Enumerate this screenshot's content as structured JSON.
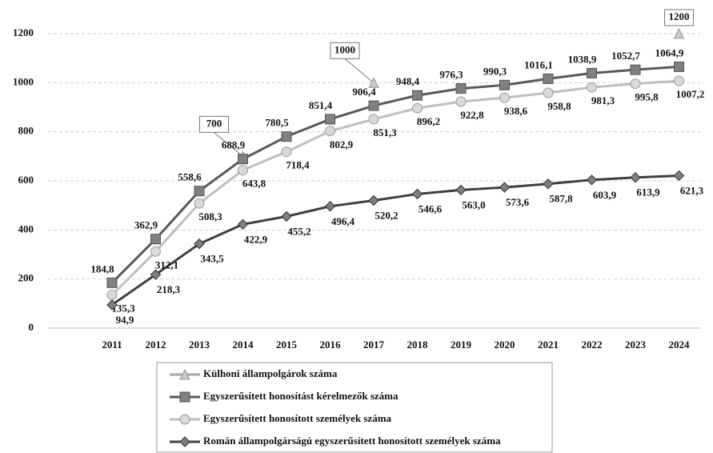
{
  "chart_data": {
    "type": "line",
    "categories": [
      "2011",
      "2012",
      "2013",
      "2014",
      "2015",
      "2016",
      "2017",
      "2018",
      "2019",
      "2020",
      "2021",
      "2022",
      "2023",
      "2024"
    ],
    "ylim": [
      0,
      1200
    ],
    "yticks": [
      0,
      200,
      400,
      600,
      800,
      1000,
      1200
    ],
    "grid": true,
    "series": [
      {
        "name": "Külhoni állampolgárok száma",
        "color": "#a6a6a6",
        "marker": "triangle",
        "values": [
          null,
          null,
          null,
          700,
          null,
          null,
          1000,
          null,
          null,
          null,
          null,
          null,
          null,
          1200
        ]
      },
      {
        "name": "Egyszerűsített honosítást kérelmezők száma",
        "color": "#595959",
        "marker": "square",
        "values": [
          184.8,
          362.9,
          558.6,
          688.9,
          780.5,
          851.4,
          906.4,
          948.4,
          976.3,
          990.3,
          1016.1,
          1038.9,
          1052.7,
          1064.9
        ],
        "value_labels": [
          "184,8",
          "362,9",
          "558,6",
          "688,9",
          "780,5",
          "851,4",
          "906,4",
          "948,4",
          "976,3",
          "990,3",
          "1016,1",
          "1038,9",
          "1052,7",
          "1064,9"
        ]
      },
      {
        "name": "Egyszerűsített honosított személyek száma",
        "color": "#bfbfbf",
        "marker": "circle",
        "values": [
          135.3,
          312.1,
          508.3,
          643.8,
          718.4,
          802.9,
          851.3,
          896.2,
          922.8,
          938.6,
          958.8,
          981.3,
          995.8,
          1007.2
        ],
        "value_labels": [
          "135,3",
          "312,1",
          "508,3",
          "643,8",
          "718,4",
          "802,9",
          "851,3",
          "896,2",
          "922,8",
          "938,6",
          "958,8",
          "981,3",
          "995,8",
          "1007,2"
        ]
      },
      {
        "name": "Román állampolgárságú egyszerűsített honosított személyek száma",
        "color": "#404040",
        "marker": "diamond",
        "values": [
          94.9,
          218.3,
          343.5,
          422.9,
          455.2,
          496.4,
          520.2,
          546.6,
          563.0,
          573.6,
          587.8,
          603.9,
          613.9,
          621.3
        ],
        "value_labels": [
          "94,9",
          "218,3",
          "343,5",
          "422,9",
          "455,2",
          "496,4",
          "520,2",
          "546,6",
          "563,0",
          "573,6",
          "587,8",
          "603,9",
          "613,9",
          "621,3"
        ]
      }
    ]
  }
}
